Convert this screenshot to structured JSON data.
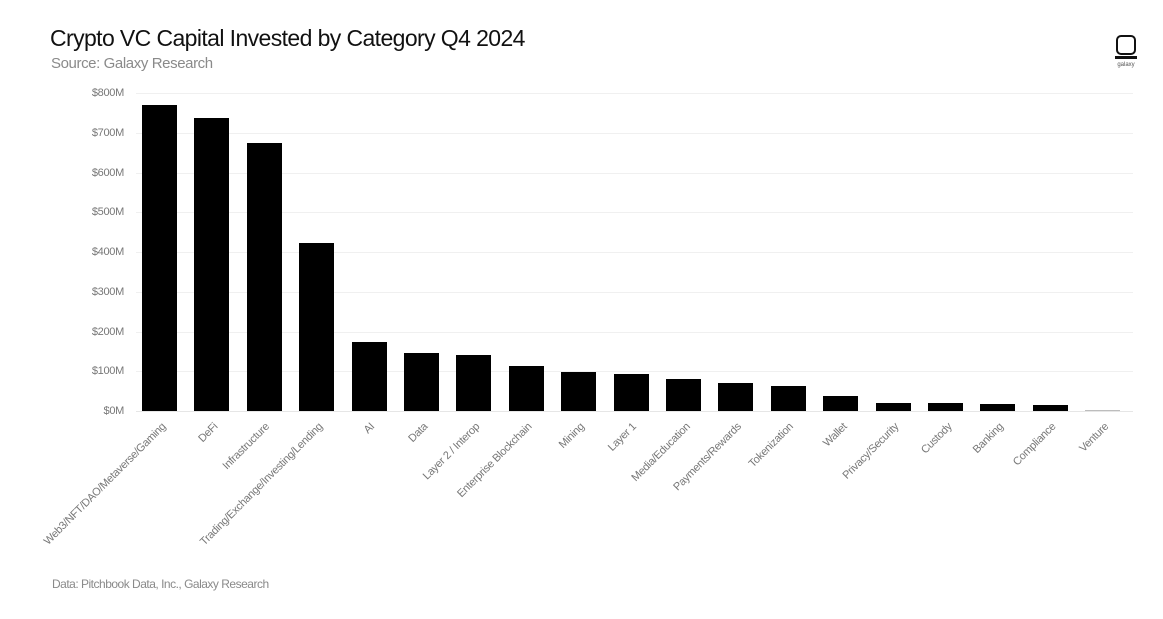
{
  "header": {
    "title": "Crypto VC Capital Invested by Category Q4 2024",
    "subtitle": "Source: Galaxy Research"
  },
  "logo": {
    "icon": "galaxy-logo-icon",
    "text": "galaxy"
  },
  "footer": {
    "text": "Data: Pitchbook Data, Inc., Galaxy Research"
  },
  "colors": {
    "bar": "#000000",
    "text": "#111111",
    "muted": "#8a8a8a",
    "grid": "#f0f0f0"
  },
  "chart_data": {
    "type": "bar",
    "title": "Crypto VC Capital Invested by Category Q4 2024",
    "subtitle": "Source: Galaxy Research",
    "xlabel": "",
    "ylabel": "",
    "ylim": [
      0,
      800
    ],
    "unit": "$M",
    "yticks": [
      "$0M",
      "$100M",
      "$200M",
      "$300M",
      "$400M",
      "$500M",
      "$600M",
      "$700M",
      "$800M"
    ],
    "grid": true,
    "legend": "none",
    "categories": [
      "Web3/NFT/DAO/Metaverse/Gaming",
      "DeFi",
      "Infrastructure",
      "Trading/Exchange/Investing/Lending",
      "AI",
      "Data",
      "Layer 2 / Interop",
      "Enterprise Blockchain",
      "Mining",
      "Layer 1",
      "Media/Education",
      "Payments/Rewards",
      "Tokenization",
      "Wallet",
      "Privacy/Security",
      "Custody",
      "Banking",
      "Compliance",
      "Venture"
    ],
    "values": [
      770,
      737,
      674,
      423,
      174,
      146,
      141,
      113,
      98,
      93,
      80,
      70,
      62,
      38,
      20,
      20,
      18,
      16,
      2
    ],
    "source_note": "Data: Pitchbook Data, Inc., Galaxy Research"
  }
}
